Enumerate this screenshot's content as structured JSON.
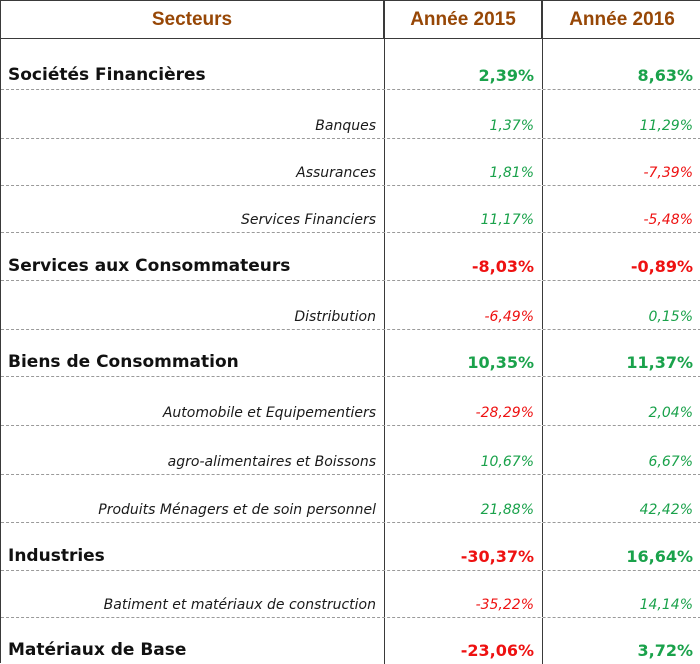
{
  "colors": {
    "header_text": "#974706",
    "positive": "#1aa24b",
    "negative": "#ee1111"
  },
  "header": {
    "sector": "Secteurs",
    "year1": "Année 2015",
    "year2": "Année 2016"
  },
  "rows": [
    {
      "type": "major",
      "label": "Sociétés Financières",
      "y2015": "2,39%",
      "y2016": "8,63%"
    },
    {
      "type": "minor",
      "label": "Banques",
      "y2015": "1,37%",
      "y2016": "11,29%"
    },
    {
      "type": "minor",
      "label": "Assurances",
      "y2015": "1,81%",
      "y2016": "-7,39%"
    },
    {
      "type": "minor",
      "label": "Services Financiers",
      "y2015": "11,17%",
      "y2016": "-5,48%"
    },
    {
      "type": "major",
      "label": "Services aux Consommateurs",
      "y2015": "-8,03%",
      "y2016": "-0,89%"
    },
    {
      "type": "minor",
      "label": "Distribution",
      "y2015": "-6,49%",
      "y2016": "0,15%"
    },
    {
      "type": "major",
      "label": "Biens de Consommation",
      "y2015": "10,35%",
      "y2016": "11,37%"
    },
    {
      "type": "minor",
      "label": "Automobile et Equipementiers",
      "y2015": "-28,29%",
      "y2016": "2,04%"
    },
    {
      "type": "minor",
      "label": "agro-alimentaires et Boissons",
      "y2015": "10,67%",
      "y2016": "6,67%"
    },
    {
      "type": "minor",
      "label": "Produits Ménagers et de soin personnel",
      "y2015": "21,88%",
      "y2016": "42,42%"
    },
    {
      "type": "major",
      "label": "Industries",
      "y2015": "-30,37%",
      "y2016": "16,64%"
    },
    {
      "type": "minor",
      "label": "Batiment et matériaux de construction",
      "y2015": "-35,22%",
      "y2016": "14,14%"
    },
    {
      "type": "major",
      "label": "Matériaux de Base",
      "y2015": "-23,06%",
      "y2016": "3,72%"
    }
  ]
}
